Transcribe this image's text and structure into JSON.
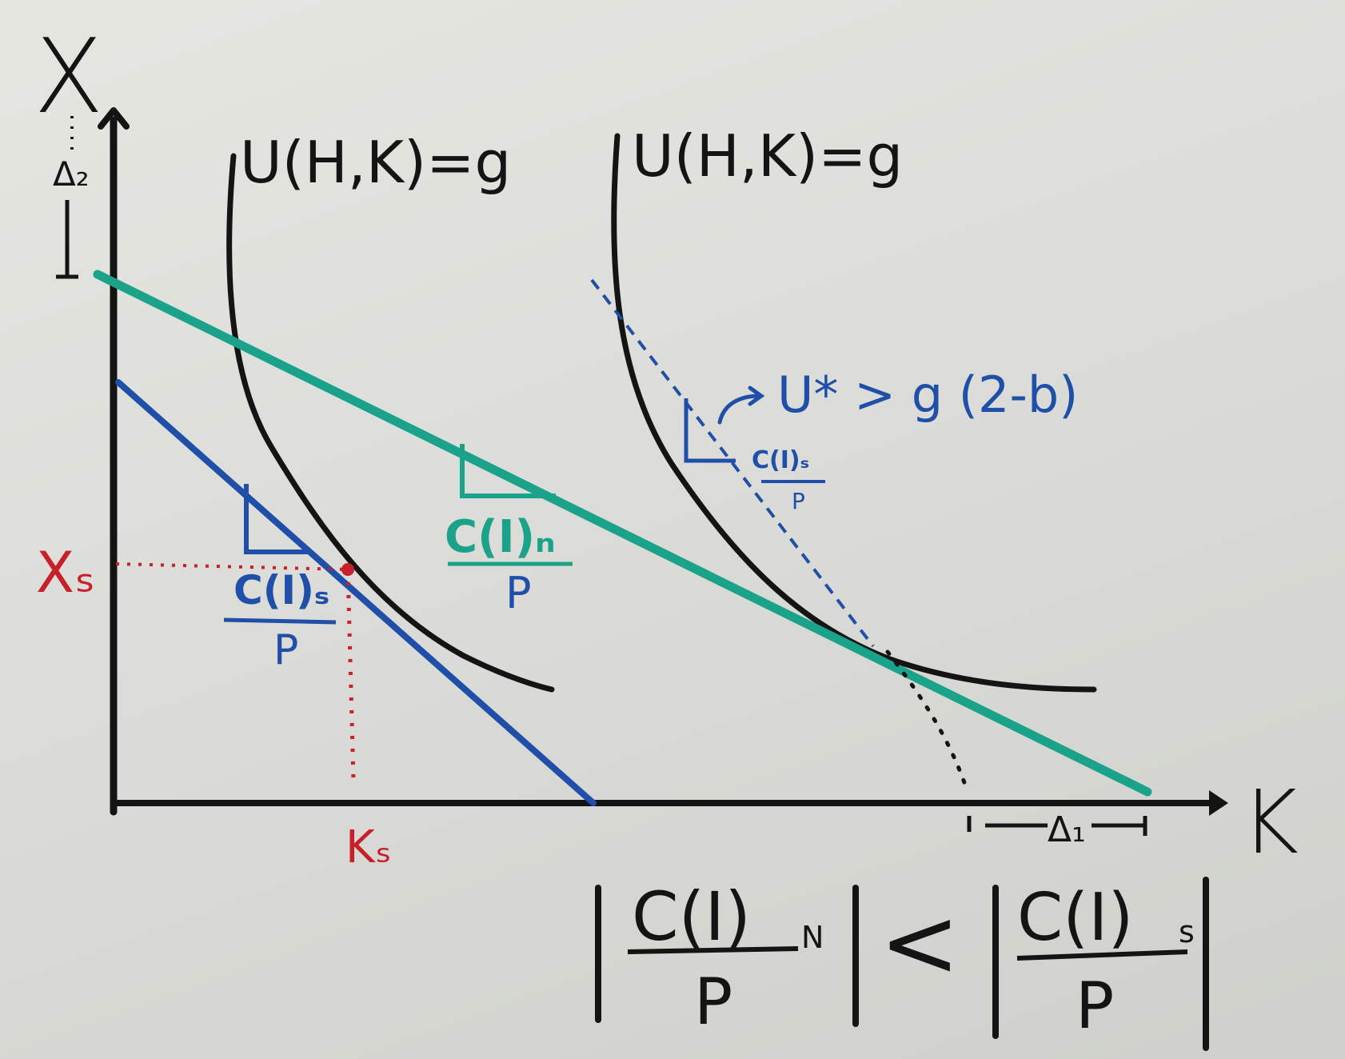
{
  "axes": {
    "y_label": "X",
    "x_label": "K"
  },
  "curves": {
    "indifference_left_label": "U(H,K)=g",
    "indifference_right_label": "U(H,K)=g"
  },
  "annotations": {
    "delta_2": "Δ₂",
    "delta_1": "Δ₁",
    "x_s": "Xₛ",
    "k_s": "Kₛ",
    "blue_slope_num": "C(I)ₛ",
    "blue_slope_den": "P",
    "green_slope_num": "C(I)ₙ",
    "green_slope_den": "P",
    "dashed_slope_num": "C(I)ₛ",
    "dashed_slope_den": "P",
    "u_star_label": "U* > g (2-b)"
  },
  "inequality": {
    "left_num": "C(I)",
    "left_sub": "N",
    "left_den": "P",
    "operator": "<",
    "right_num": "C(I)",
    "right_sub": "s",
    "right_den": "P"
  },
  "colors": {
    "ink_black": "#141414",
    "ink_blue": "#1f4fa8",
    "ink_green": "#1aa38a",
    "ink_red": "#c8202a"
  }
}
